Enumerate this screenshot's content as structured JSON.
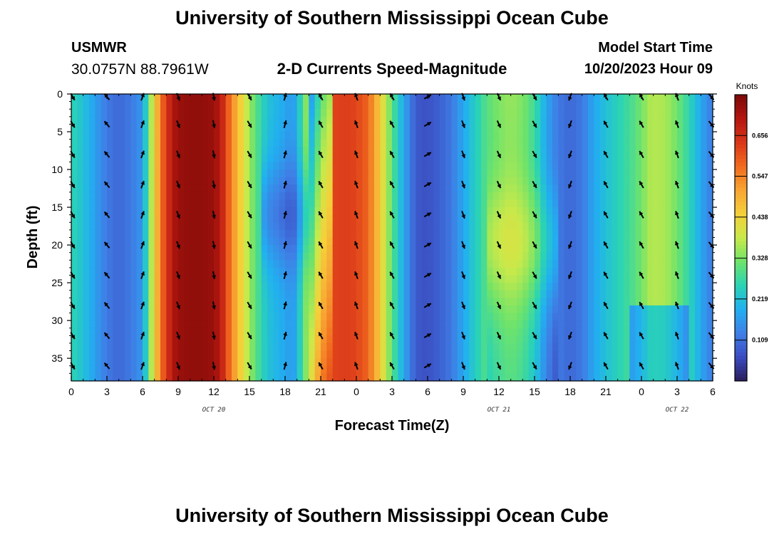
{
  "header": {
    "title": "University of Southern Mississippi Ocean Cube",
    "station": "USMWR",
    "coords": "30.0757N  88.7961W",
    "subtitle": "2-D Currents Speed-Magnitude",
    "model_start_label": "Model Start Time",
    "model_start_value": "10/20/2023 Hour 09"
  },
  "footer": {
    "title": "University of Southern Mississippi Ocean Cube"
  },
  "chart_data": {
    "type": "heatmap",
    "title": "2-D Currents Speed-Magnitude",
    "xlabel": "Forecast Time(Z)",
    "ylabel": "Depth (ft)",
    "x_tick_labels": [
      "0",
      "3",
      "6",
      "9",
      "12",
      "15",
      "18",
      "21",
      "0",
      "3",
      "6",
      "9",
      "12",
      "15",
      "18",
      "21",
      "0",
      "3",
      "6"
    ],
    "x_range_hours": [
      0,
      54
    ],
    "date_labels": [
      {
        "label": "OCT 20",
        "hour": 12
      },
      {
        "label": "OCT 21",
        "hour": 36
      },
      {
        "label": "OCT 22",
        "hour": 51
      }
    ],
    "y_tick_labels": [
      "0",
      "5",
      "10",
      "15",
      "20",
      "25",
      "30",
      "35"
    ],
    "y_tick_values": [
      0,
      5,
      10,
      15,
      20,
      25,
      30,
      35
    ],
    "ylim": [
      0,
      38
    ],
    "y_inverted": true,
    "colorbar": {
      "unit": "Knots",
      "min": 0,
      "max": 0.765,
      "tick_labels": [
        "0.656",
        "0.547",
        "0.438",
        "0.328",
        "0.219",
        "0.109"
      ],
      "tick_values": [
        0.656,
        0.547,
        0.438,
        0.328,
        0.219,
        0.109
      ],
      "colors": [
        "#2a1e5c",
        "#3b4cc0",
        "#3f7fe6",
        "#21b0f0",
        "#2ad3b5",
        "#6fe36a",
        "#c9e94a",
        "#f5d03a",
        "#f7a533",
        "#f16b1e",
        "#d9361a",
        "#b3160f",
        "#7a0a08"
      ]
    },
    "time_speed_profile": {
      "hours": [
        0,
        1,
        2,
        3,
        4,
        5,
        6,
        6.6,
        7.5,
        8.5,
        9,
        10,
        11,
        12,
        12.6,
        13,
        14,
        15,
        16,
        16.6,
        17,
        18,
        18.6,
        19,
        20,
        21,
        22,
        23,
        24,
        25,
        26,
        27,
        28,
        28.6,
        29,
        30,
        31,
        32,
        33,
        34,
        35,
        36,
        37,
        38,
        39,
        40,
        41,
        42,
        43,
        44,
        45,
        46,
        47,
        48,
        48.6,
        49,
        50,
        51,
        52,
        53,
        54
      ],
      "speed_knots": [
        0.26,
        0.22,
        0.17,
        0.12,
        0.1,
        0.12,
        0.16,
        0.33,
        0.56,
        0.7,
        0.73,
        0.74,
        0.74,
        0.73,
        0.69,
        0.62,
        0.48,
        0.35,
        0.26,
        0.22,
        0.21,
        0.18,
        0.16,
        0.2,
        0.38,
        0.55,
        0.62,
        0.63,
        0.62,
        0.58,
        0.45,
        0.3,
        0.18,
        0.12,
        0.08,
        0.07,
        0.09,
        0.12,
        0.18,
        0.24,
        0.3,
        0.33,
        0.35,
        0.33,
        0.28,
        0.18,
        0.12,
        0.1,
        0.12,
        0.18,
        0.22,
        0.25,
        0.28,
        0.32,
        0.36,
        0.37,
        0.36,
        0.32,
        0.26,
        0.18,
        0.12
      ]
    },
    "vector_arrow_hours": [
      0,
      3,
      6,
      9,
      12,
      15,
      18,
      21,
      24,
      27,
      30,
      33,
      36,
      39,
      42,
      45,
      48,
      51,
      54
    ],
    "vector_arrow_depths_ft": [
      0,
      4,
      8,
      12,
      16,
      20,
      24,
      28,
      32,
      36
    ],
    "vector_arrow_directions_deg": [
      150,
      320,
      20,
      160,
      170,
      150,
      15,
      330,
      340,
      330,
      60,
      160,
      155,
      150,
      200,
      330,
      330,
      340,
      140
    ]
  }
}
